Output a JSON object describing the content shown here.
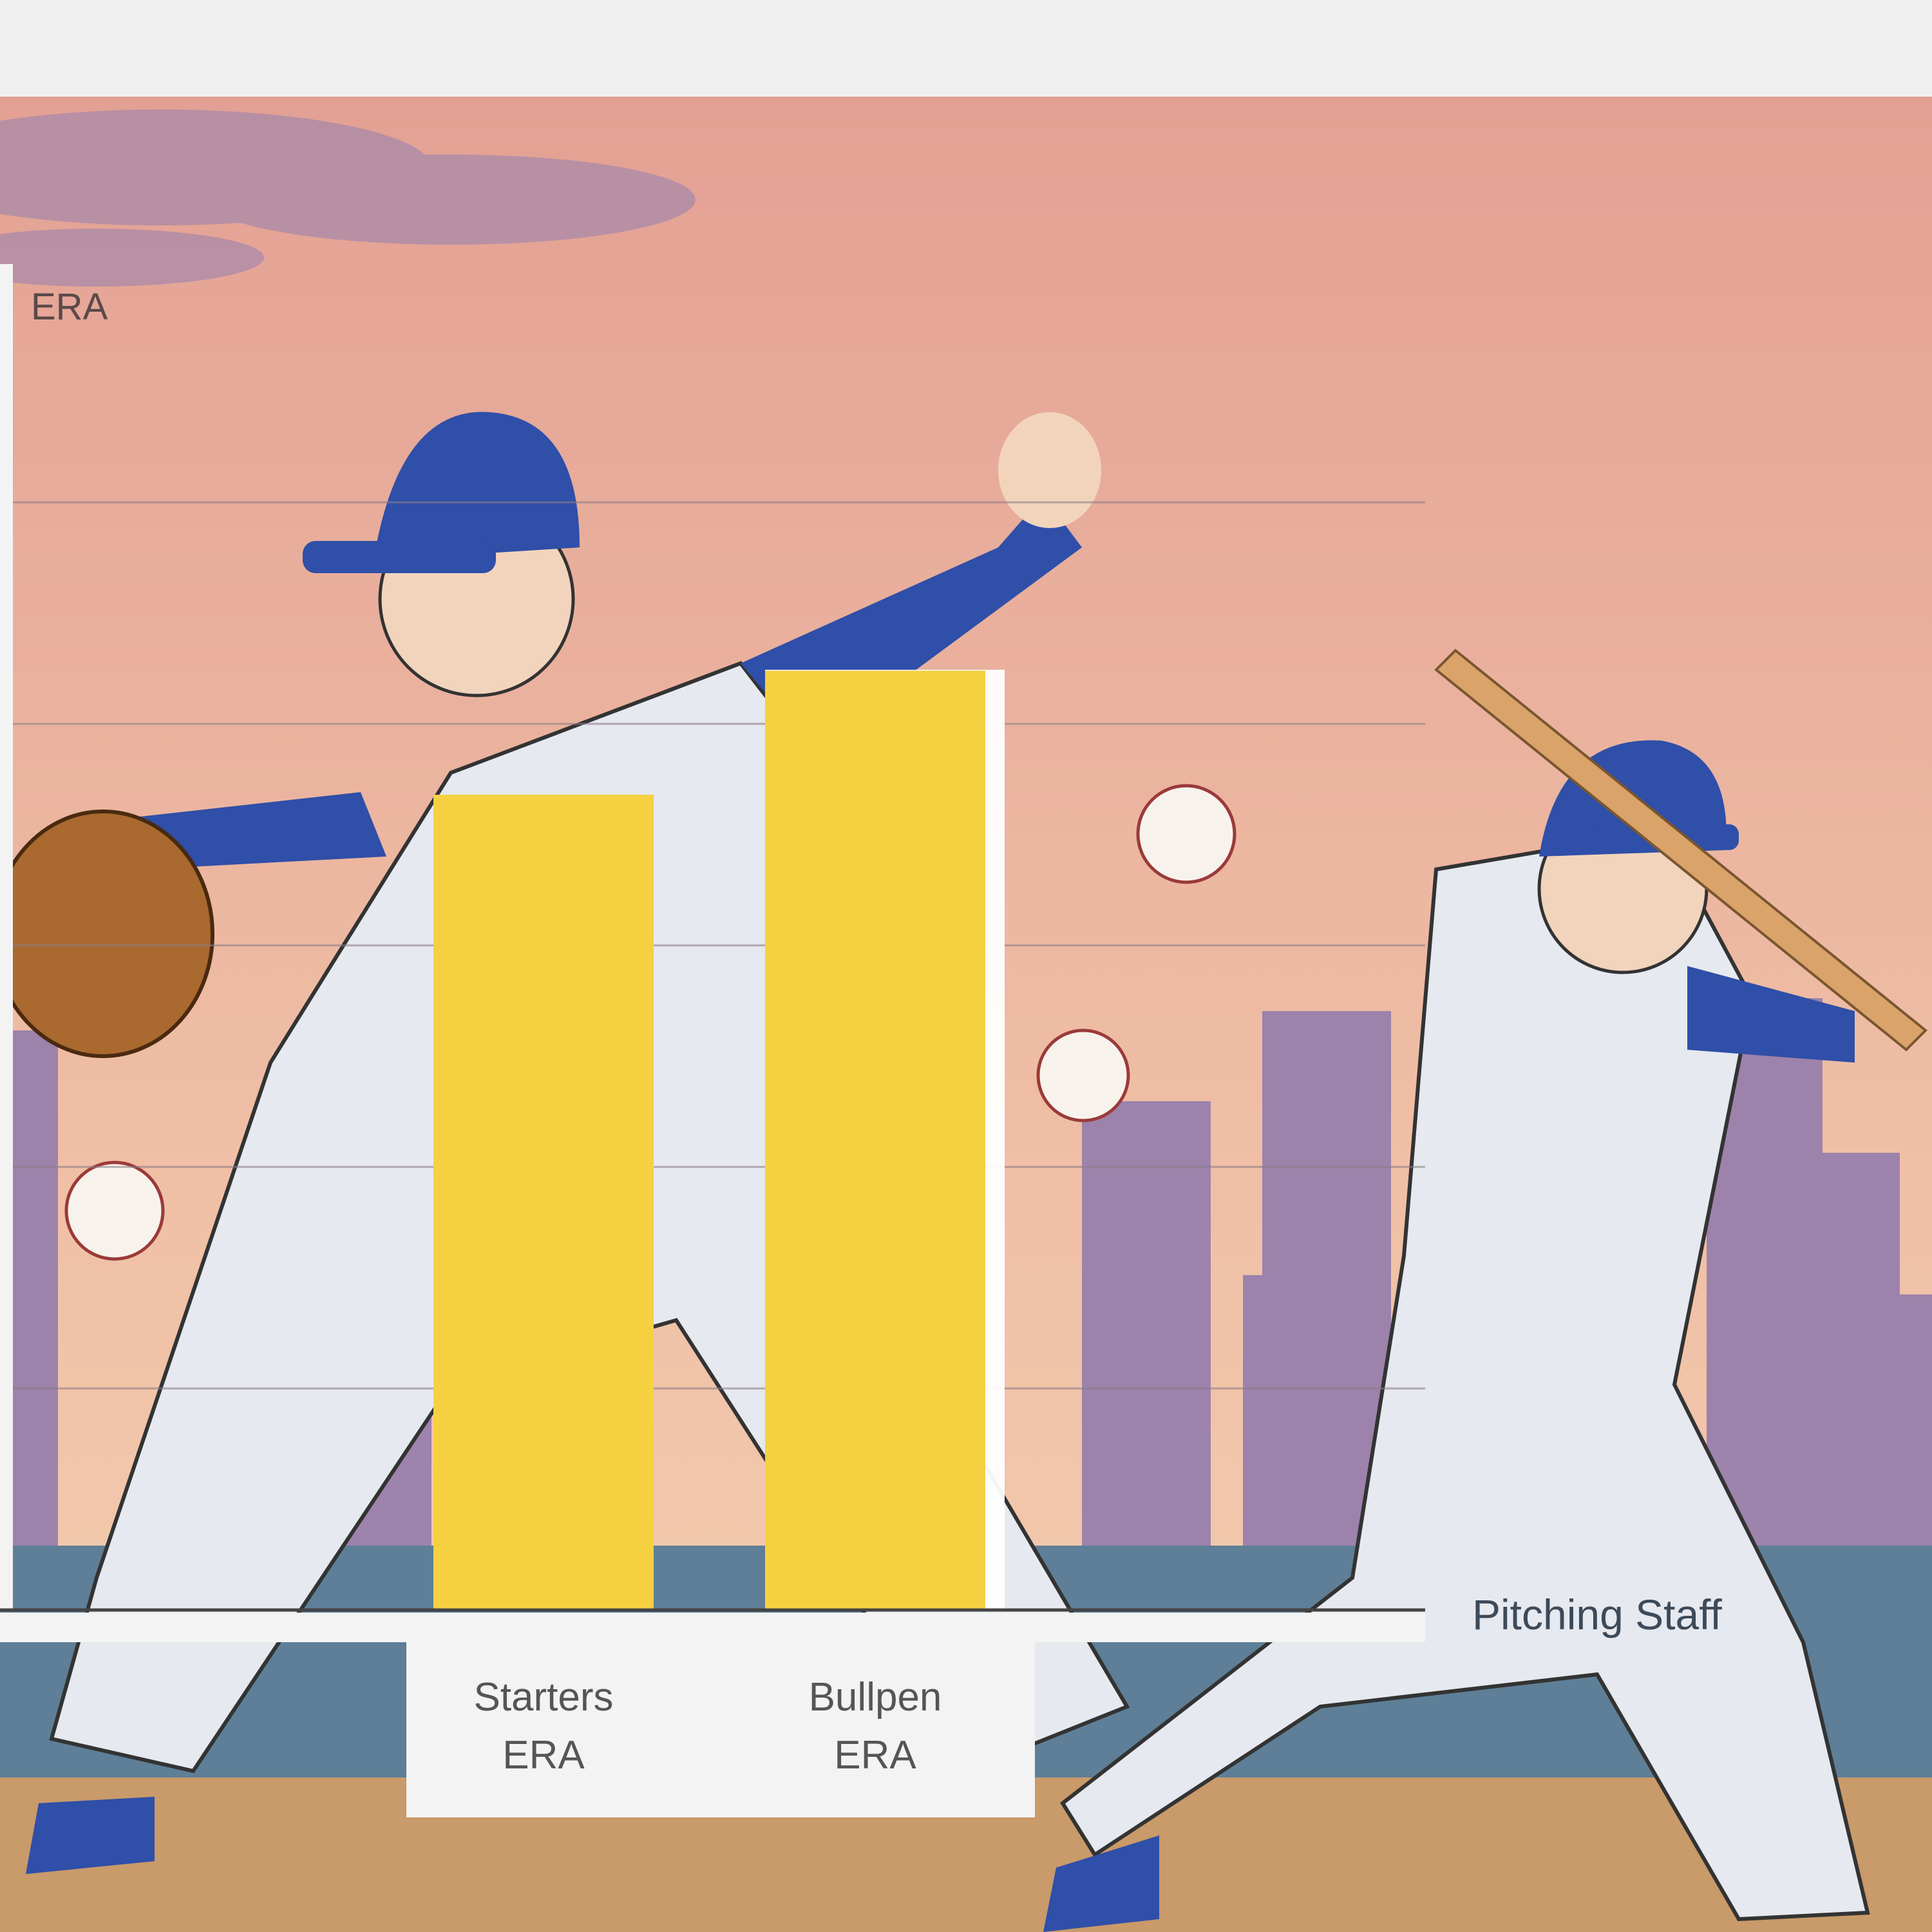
{
  "chart_data": {
    "type": "bar",
    "title": "",
    "ylabel": "ERA",
    "xlabel": "Pitching Staff",
    "categories": [
      "Starters ERA",
      "Bullpen ERA"
    ],
    "category_lines": [
      [
        "Starters",
        "ERA"
      ],
      [
        "Bullpen",
        "ERA"
      ]
    ],
    "values": [
      3.68,
      4.24
    ],
    "ylim": [
      0,
      5
    ],
    "y_tick_labels_shown": false,
    "grid": true,
    "legend": "none",
    "bar_color": "#f5d142"
  },
  "colors": {
    "sky_top": "#e8a99a",
    "sky_bottom": "#f1c4a8",
    "skyline": "#9d82ab",
    "field": "#c99a6a",
    "uniform_blue": "#2f4fa8"
  }
}
